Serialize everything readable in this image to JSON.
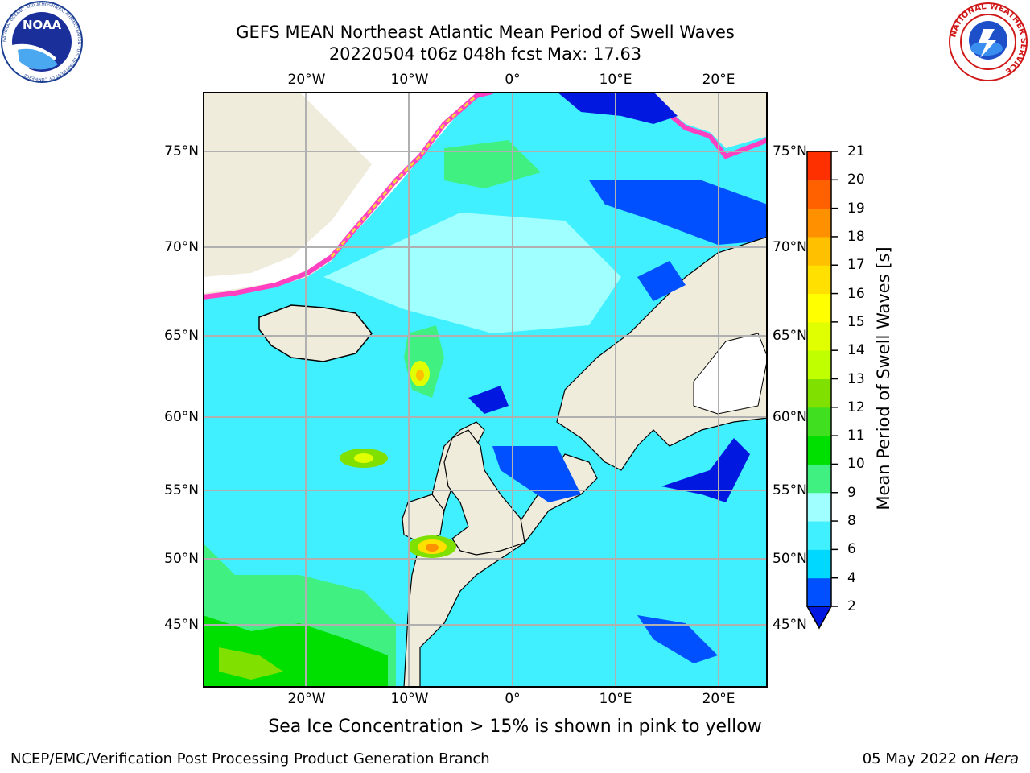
{
  "header": {
    "title_line1": "GEFS MEAN Northeast Atlantic Mean Period of Swell Waves",
    "title_line2": "20220504 t06z 048h fcst   Max: 17.63"
  },
  "logos": {
    "left": "NOAA",
    "left_ring": "NATIONAL OCEANIC AND ATMOSPHERIC ADMINISTRATION · U.S. DEPARTMENT OF COMMERCE",
    "right_ring": "NATIONAL WEATHER SERVICE"
  },
  "axes": {
    "top_lon": [
      "20°W",
      "10°W",
      "0°",
      "10°E",
      "20°E"
    ],
    "bottom_lon": [
      "20°W",
      "10°W",
      "0°",
      "10°E",
      "20°E"
    ],
    "left_lat": [
      "75°N",
      "70°N",
      "65°N",
      "60°N",
      "55°N",
      "50°N",
      "45°N"
    ],
    "right_lat": [
      "75°N",
      "70°N",
      "65°N",
      "60°N",
      "55°N",
      "50°N",
      "45°N"
    ]
  },
  "colorbar": {
    "title": "Mean Period of Swell Waves [s]",
    "labels": [
      "2",
      "4",
      "6",
      "8",
      "9",
      "10",
      "11",
      "12",
      "13",
      "14",
      "15",
      "16",
      "17",
      "18",
      "19",
      "20",
      "21"
    ],
    "colors": [
      "#0050ff",
      "#00d8ff",
      "#40f0ff",
      "#a0ffff",
      "#40f080",
      "#00e000",
      "#40e020",
      "#80e000",
      "#c0ff00",
      "#e0ff00",
      "#ffff00",
      "#ffe000",
      "#ffc000",
      "#ff9000",
      "#ff6000",
      "#ff3000"
    ],
    "extend_color": "#0018e0"
  },
  "map_colors": {
    "land": "#efecdc",
    "ice_edge": [
      "#ff40c0",
      "#ff90b0",
      "#ffd040",
      "#ffff40"
    ]
  },
  "note": "Sea Ice Concentration > 15% is shown in pink to yellow",
  "footer": {
    "left": "NCEP/EMC/Verification Post Processing Product Generation Branch",
    "right_date": "05 May 2022 on ",
    "right_host": "Hera"
  }
}
